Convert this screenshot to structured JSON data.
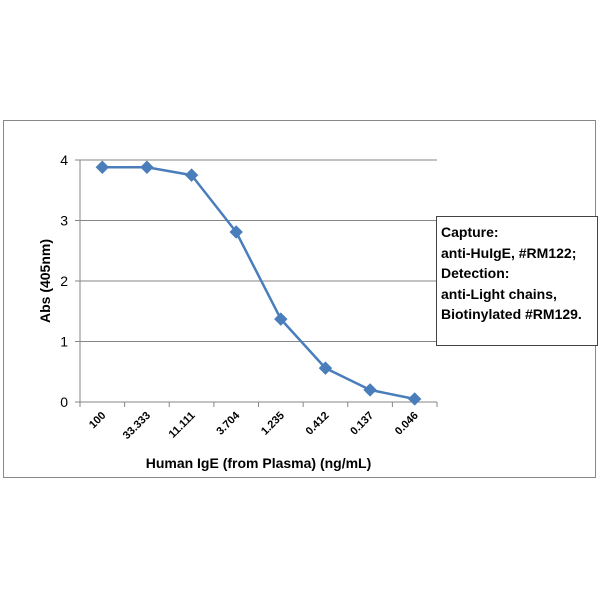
{
  "chart_data": {
    "type": "line",
    "categories": [
      "100",
      "33.333",
      "11.111",
      "3.704",
      "1.235",
      "0.412",
      "0.137",
      "0.046"
    ],
    "series": [
      {
        "values": [
          3.88,
          3.88,
          3.75,
          2.81,
          1.37,
          0.56,
          0.2,
          0.05
        ],
        "color": "#4a7ebb"
      }
    ],
    "xlabel": "Human IgE (from Plasma) (ng/mL)",
    "ylabel": "Abs (405nm)",
    "ylim": [
      0,
      4
    ],
    "yticks": [
      "0",
      "1",
      "2",
      "3",
      "4"
    ],
    "grid": true,
    "marker": "diamond",
    "annotation": [
      "Capture:",
      "anti-HuIgE, #RM122;",
      "Detection:",
      "anti-Light chains,",
      "Biotinylated #RM129."
    ]
  }
}
